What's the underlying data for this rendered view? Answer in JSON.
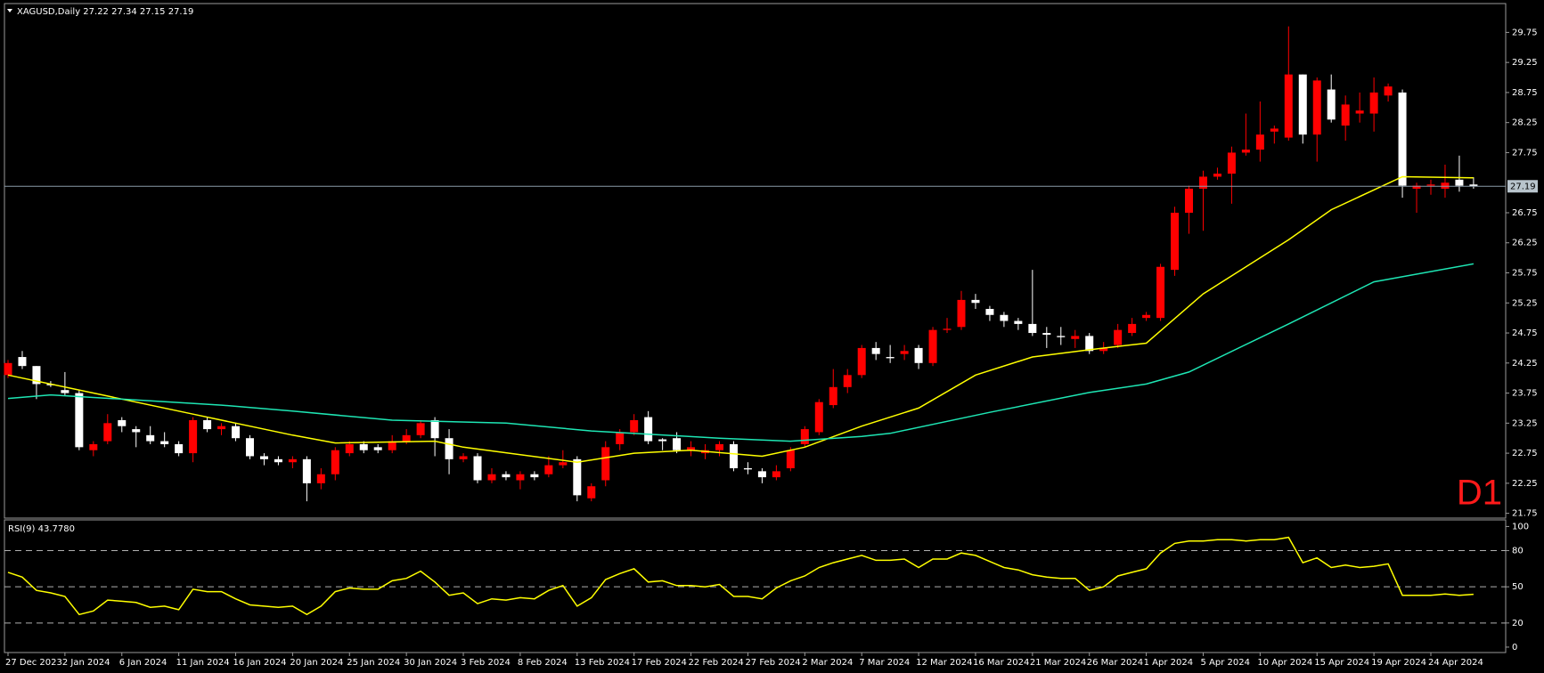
{
  "chart_data": [
    {
      "type": "candlestick",
      "title": "XAGUSD,Daily  27.22 27.34 27.15 27.19",
      "annotation": "D1",
      "categories": [
        "27 Dec 2023",
        null,
        null,
        null,
        "2 Jan 2024",
        null,
        null,
        null,
        "6 Jan 2024",
        null,
        null,
        null,
        "11 Jan 2024",
        null,
        null,
        null,
        "16 Jan 2024",
        null,
        null,
        null,
        "20 Jan 2024",
        null,
        null,
        null,
        "25 Jan 2024",
        null,
        null,
        null,
        "30 Jan 2024",
        null,
        null,
        null,
        "3 Feb 2024",
        null,
        null,
        null,
        "8 Feb 2024",
        null,
        null,
        null,
        "13 Feb 2024",
        null,
        null,
        null,
        "17 Feb 2024",
        null,
        null,
        null,
        "22 Feb 2024",
        null,
        null,
        null,
        "27 Feb 2024",
        null,
        null,
        null,
        "2 Mar 2024",
        null,
        null,
        null,
        "7 Mar 2024",
        null,
        null,
        null,
        "12 Mar 2024",
        null,
        null,
        null,
        "16 Mar 2024",
        null,
        null,
        null,
        "21 Mar 2024",
        null,
        null,
        null,
        "26 Mar 2024",
        null,
        null,
        null,
        "1 Apr 2024",
        null,
        null,
        null,
        "5 Apr 2024",
        null,
        null,
        null,
        "10 Apr 2024",
        null,
        null,
        null,
        "15 Apr 2024",
        null,
        null,
        null,
        "19 Apr 2024",
        null,
        null,
        null,
        "24 Apr 2024",
        null,
        null,
        null
      ],
      "open": [
        24.05,
        24.35,
        24.2,
        23.9,
        23.8,
        23.75,
        22.8,
        22.95,
        23.3,
        23.15,
        23.05,
        22.95,
        22.9,
        22.75,
        23.3,
        23.15,
        23.2,
        23.0,
        22.7,
        22.65,
        22.6,
        22.65,
        22.25,
        22.4,
        22.75,
        22.9,
        22.85,
        22.8,
        22.95,
        23.05,
        23.3,
        23.0,
        22.65,
        22.7,
        22.3,
        22.4,
        22.3,
        22.4,
        22.4,
        22.55,
        22.65,
        22.0,
        22.3,
        22.9,
        23.1,
        23.35,
        22.98,
        23.0,
        22.8,
        22.75,
        22.8,
        22.9,
        22.5,
        22.45,
        22.35,
        22.5,
        22.9,
        23.1,
        23.55,
        23.85,
        24.05,
        24.5,
        24.35,
        24.4,
        24.5,
        24.25,
        24.8,
        24.85,
        25.3,
        25.15,
        25.05,
        24.95,
        24.9,
        24.75,
        24.7,
        24.65,
        24.7,
        24.45,
        24.55,
        24.75,
        25.0,
        25.0,
        25.8,
        26.75,
        27.15,
        27.35,
        27.4,
        27.75,
        27.8,
        28.1,
        28.0,
        29.05,
        28.05,
        28.8,
        28.2,
        28.4,
        28.4,
        28.7,
        28.75,
        27.15,
        27.2,
        27.15,
        27.3,
        27.22
      ],
      "high": [
        24.3,
        24.45,
        24.2,
        23.95,
        24.1,
        23.8,
        22.95,
        23.4,
        23.35,
        23.2,
        23.2,
        23.1,
        22.95,
        23.35,
        23.35,
        23.25,
        23.25,
        23.05,
        22.75,
        22.7,
        22.7,
        22.7,
        22.5,
        22.85,
        22.95,
        22.95,
        22.9,
        23.05,
        23.15,
        23.3,
        23.35,
        23.15,
        22.75,
        22.75,
        22.5,
        22.45,
        22.45,
        22.45,
        22.7,
        22.8,
        22.7,
        22.25,
        22.95,
        23.15,
        23.4,
        23.45,
        23.0,
        23.1,
        22.95,
        22.9,
        22.95,
        22.95,
        22.6,
        22.5,
        22.55,
        22.85,
        23.2,
        23.65,
        24.15,
        24.15,
        24.55,
        24.6,
        24.55,
        24.55,
        24.55,
        24.85,
        25.0,
        25.45,
        25.4,
        25.2,
        25.1,
        25.0,
        25.8,
        24.85,
        24.85,
        24.8,
        24.75,
        24.6,
        24.9,
        25.0,
        25.1,
        25.9,
        26.85,
        27.2,
        27.45,
        27.5,
        27.85,
        28.4,
        28.6,
        28.2,
        29.85,
        29.05,
        29.0,
        29.05,
        28.7,
        28.75,
        29.0,
        28.9,
        28.8,
        27.25,
        27.3,
        27.55,
        27.7,
        27.34
      ],
      "low": [
        24.0,
        24.15,
        23.65,
        23.85,
        23.7,
        22.8,
        22.7,
        22.9,
        23.1,
        22.85,
        22.9,
        22.85,
        22.7,
        22.6,
        23.1,
        23.05,
        22.95,
        22.65,
        22.55,
        22.55,
        22.5,
        21.95,
        22.15,
        22.3,
        22.7,
        22.75,
        22.75,
        22.75,
        22.9,
        23.0,
        22.7,
        22.4,
        22.6,
        22.25,
        22.25,
        22.3,
        22.15,
        22.3,
        22.35,
        22.5,
        21.95,
        21.95,
        22.2,
        22.8,
        23.05,
        22.9,
        22.8,
        22.75,
        22.7,
        22.65,
        22.7,
        22.45,
        22.4,
        22.25,
        22.3,
        22.45,
        22.85,
        23.05,
        23.5,
        23.75,
        24.0,
        24.3,
        24.25,
        24.3,
        24.15,
        24.2,
        24.75,
        24.8,
        25.15,
        24.95,
        24.85,
        24.8,
        24.7,
        24.5,
        24.55,
        24.5,
        24.4,
        24.4,
        24.5,
        24.7,
        24.95,
        24.95,
        25.7,
        26.4,
        26.45,
        27.3,
        26.9,
        27.7,
        27.6,
        27.9,
        27.95,
        27.9,
        27.6,
        28.25,
        27.95,
        28.25,
        28.1,
        28.6,
        27.0,
        26.75,
        27.05,
        27.0,
        27.1,
        27.15
      ],
      "close": [
        24.25,
        24.2,
        23.9,
        23.88,
        23.75,
        22.85,
        22.9,
        23.25,
        23.2,
        23.1,
        22.95,
        22.9,
        22.75,
        23.3,
        23.15,
        23.2,
        23.0,
        22.7,
        22.65,
        22.6,
        22.65,
        22.25,
        22.4,
        22.8,
        22.9,
        22.8,
        22.8,
        22.95,
        23.05,
        23.25,
        23.0,
        22.65,
        22.7,
        22.3,
        22.4,
        22.35,
        22.4,
        22.35,
        22.55,
        22.6,
        22.05,
        22.2,
        22.85,
        23.1,
        23.3,
        22.95,
        22.95,
        22.8,
        22.85,
        22.8,
        22.9,
        22.5,
        22.48,
        22.35,
        22.45,
        22.8,
        23.15,
        23.6,
        23.85,
        24.05,
        24.5,
        24.4,
        24.33,
        24.45,
        24.25,
        24.8,
        24.82,
        25.3,
        25.25,
        25.05,
        24.95,
        24.9,
        24.75,
        24.72,
        24.68,
        24.7,
        24.45,
        24.5,
        24.8,
        24.9,
        25.05,
        25.85,
        26.75,
        27.15,
        27.35,
        27.4,
        27.75,
        27.8,
        28.05,
        28.15,
        29.05,
        28.05,
        28.95,
        28.3,
        28.55,
        28.45,
        28.75,
        28.85,
        27.2,
        27.2,
        27.22,
        27.25,
        27.2,
        27.19
      ],
      "up_color": "#ff0000",
      "down_color": "#ffffff",
      "overlays": [
        {
          "color": "#ffff00",
          "x": [
            0,
            7,
            13,
            20,
            23,
            30,
            32,
            40,
            44,
            48,
            53,
            56,
            60,
            64,
            68,
            72,
            76,
            80,
            84,
            90,
            93,
            98,
            103
          ],
          "values": [
            24.05,
            23.7,
            23.4,
            23.05,
            22.92,
            22.95,
            22.85,
            22.6,
            22.75,
            22.8,
            22.7,
            22.85,
            23.2,
            23.5,
            24.05,
            24.35,
            24.47,
            24.58,
            25.4,
            26.3,
            26.8,
            27.35,
            27.33
          ]
        },
        {
          "color": "#1ee6b4",
          "x": [
            0,
            3,
            10,
            15,
            20,
            27,
            35,
            41,
            50,
            55,
            60,
            62,
            69,
            76,
            80,
            83,
            90,
            96,
            103
          ],
          "values": [
            23.66,
            23.72,
            23.62,
            23.55,
            23.45,
            23.3,
            23.25,
            23.12,
            23.0,
            22.95,
            23.03,
            23.08,
            23.43,
            23.76,
            23.9,
            24.1,
            24.9,
            25.6,
            25.9
          ]
        }
      ],
      "last_price": 27.19,
      "ylim": [
        21.7,
        30.2
      ],
      "yticks": [
        29.75,
        29.25,
        28.75,
        28.25,
        27.75,
        26.75,
        26.25,
        25.75,
        25.25,
        24.75,
        24.25,
        23.75,
        23.25,
        22.75,
        22.25,
        21.75
      ]
    },
    {
      "type": "line",
      "title": "RSI(9) 43.7780",
      "color": "#ffff00",
      "values": [
        62,
        58,
        47,
        45,
        42,
        27,
        30,
        39,
        38,
        37,
        33,
        34,
        31,
        48,
        46,
        46,
        40,
        35,
        34,
        33,
        34,
        27,
        34,
        46,
        49,
        48,
        48,
        55,
        57,
        63,
        54,
        43,
        45,
        36,
        40,
        39,
        41,
        40,
        47,
        51,
        34,
        41,
        56,
        61,
        65,
        54,
        55,
        51,
        51,
        50,
        52,
        42,
        42,
        40,
        49,
        55,
        59,
        66,
        70,
        73,
        76,
        72,
        72,
        73,
        66,
        73,
        73,
        78,
        76,
        71,
        66,
        64,
        60,
        58,
        57,
        57,
        47,
        50,
        59,
        62,
        65,
        78,
        86,
        88,
        88,
        89,
        89,
        88,
        89,
        89,
        91,
        70,
        74,
        66,
        68,
        66,
        67,
        69,
        43,
        43,
        43,
        44,
        43,
        43.778
      ],
      "levels": [
        80,
        50,
        20
      ],
      "ylim": [
        -3,
        104
      ],
      "yticks": [
        100,
        80,
        50,
        20,
        0
      ]
    }
  ]
}
